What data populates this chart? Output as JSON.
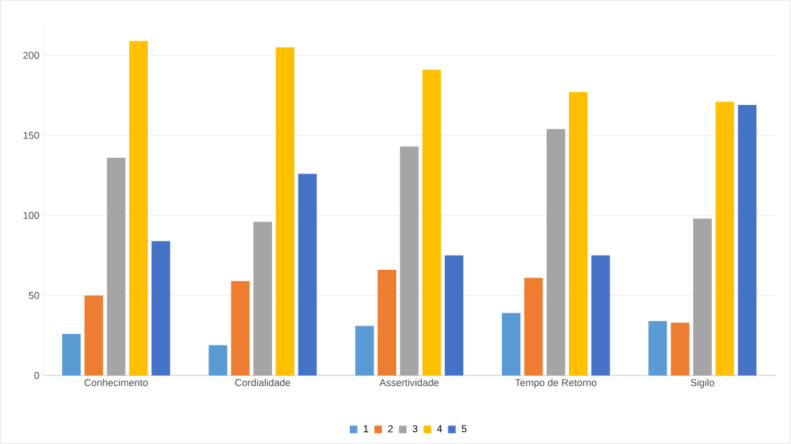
{
  "chart_data": {
    "type": "bar",
    "categories": [
      "Conhecimento",
      "Cordialidade",
      "Assertividade",
      "Tempo de Retorno",
      "Sigilo"
    ],
    "series": [
      {
        "name": "1",
        "color": "#5b9bd5",
        "values": [
          26,
          19,
          31,
          39,
          34
        ]
      },
      {
        "name": "2",
        "color": "#ed7d31",
        "values": [
          50,
          59,
          66,
          61,
          33
        ]
      },
      {
        "name": "3",
        "color": "#a5a5a5",
        "values": [
          136,
          96,
          143,
          154,
          98
        ]
      },
      {
        "name": "4",
        "color": "#ffc000",
        "values": [
          209,
          205,
          191,
          177,
          171
        ]
      },
      {
        "name": "5",
        "color": "#4472c4",
        "values": [
          84,
          126,
          75,
          75,
          169
        ]
      }
    ],
    "ylim": [
      0,
      220
    ],
    "yticks": [
      0,
      50,
      100,
      150,
      200
    ],
    "grid": "y",
    "legend": "bottom"
  }
}
